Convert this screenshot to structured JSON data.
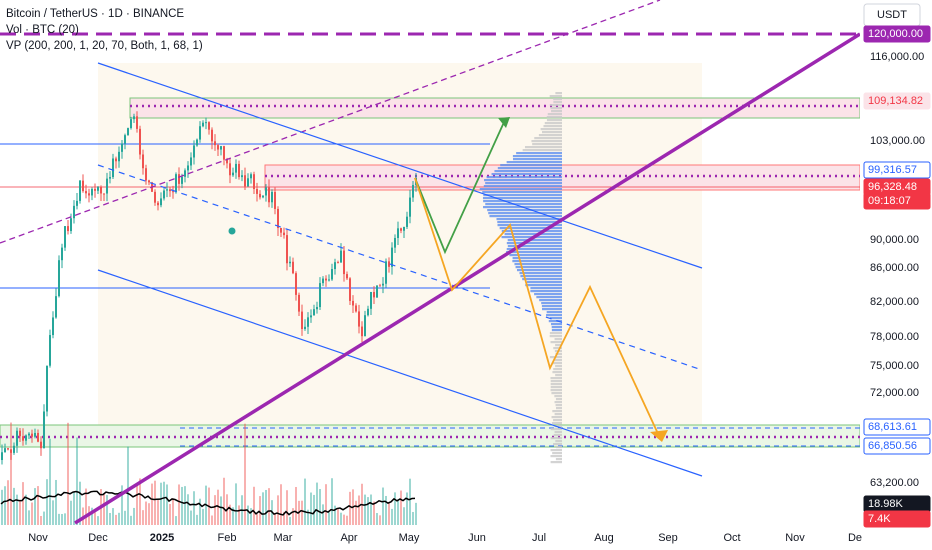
{
  "header": {
    "symbol": "Bitcoin / TetherUS · 1D · BINANCE",
    "volume": "Vol · BTC (20)",
    "volume_profile": "VP (200, 200, 1, 20, 70, Both, 1, 68, 1)",
    "currency": "USDT"
  },
  "price_axis": [
    "116,000.00",
    "103,000.00",
    "90,000.00",
    "86,000.00",
    "82,000.00",
    "78,000.00",
    "75,000.00",
    "72,000.00",
    "63,200.00"
  ],
  "price_tags": [
    "120,000.00",
    "109,134.82",
    "99,316.57",
    "96,328.48",
    "09:18:07",
    "68,613.61",
    "66,850.56",
    "18.98K",
    "7.4K"
  ],
  "time_axis": [
    "Nov",
    "Dec",
    "2025",
    "Feb",
    "Mar",
    "Apr",
    "May",
    "Jun",
    "Jul",
    "Aug",
    "Sep",
    "Oct",
    "Nov",
    "De"
  ]
}
